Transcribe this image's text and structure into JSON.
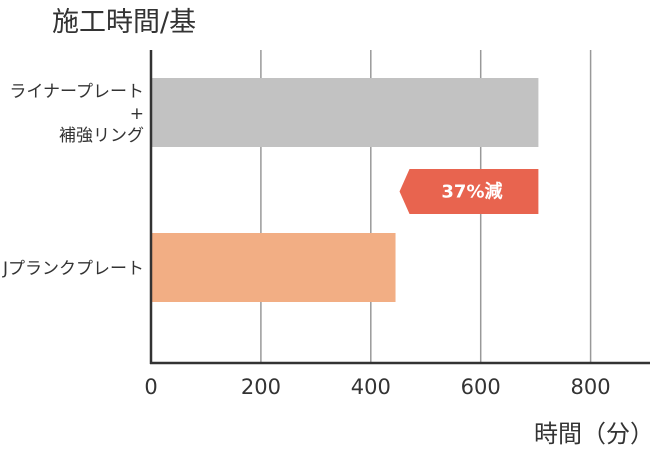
{
  "chart_data": {
    "type": "bar",
    "orientation": "horizontal",
    "title": "施工時間/基",
    "xlabel": "時間（分）",
    "xlim": [
      0,
      1000
    ],
    "xticks": [
      0,
      200,
      400,
      600,
      800
    ],
    "xtick_labels": [
      "0",
      "200",
      "400",
      "600",
      "800"
    ],
    "grid": true,
    "categories": [
      {
        "lines": [
          "ライナープレート",
          "+",
          "補強リング"
        ]
      },
      {
        "lines": [
          "Jプランクプレート"
        ]
      }
    ],
    "values": [
      705,
      445
    ],
    "bar_colors": [
      "#c2c2c2",
      "#f2ae84"
    ],
    "annotation": {
      "text": "37%減",
      "from_value": 445,
      "to_value": 705,
      "color": "#e8644f"
    }
  }
}
